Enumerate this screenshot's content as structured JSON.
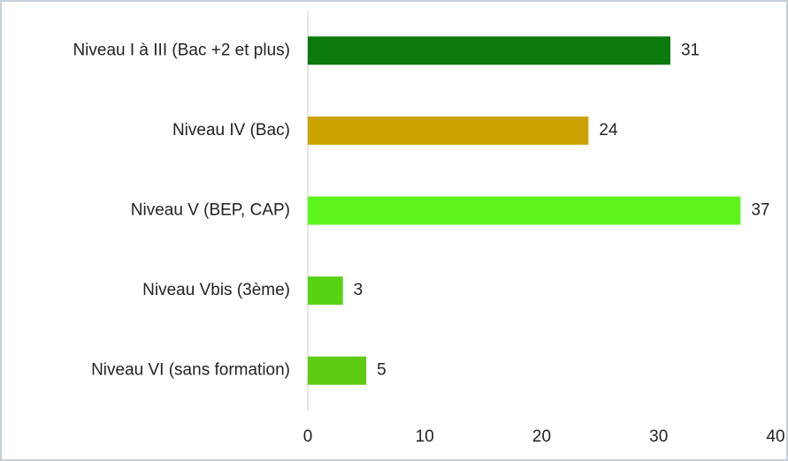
{
  "chart_data": {
    "type": "bar",
    "orientation": "horizontal",
    "categories": [
      "Niveau I à III (Bac +2 et plus)",
      "Niveau IV (Bac)",
      "Niveau V (BEP, CAP)",
      "Niveau Vbis (3ème)",
      "Niveau VI (sans formation)"
    ],
    "values": [
      31,
      24,
      37,
      3,
      5
    ],
    "colors": [
      "#0b790b",
      "#cba300",
      "#5df41d",
      "#56d414",
      "#5ccb12"
    ],
    "xlim": [
      0,
      40
    ],
    "xticks": [
      0,
      10,
      20,
      30,
      40
    ],
    "grid": false
  }
}
